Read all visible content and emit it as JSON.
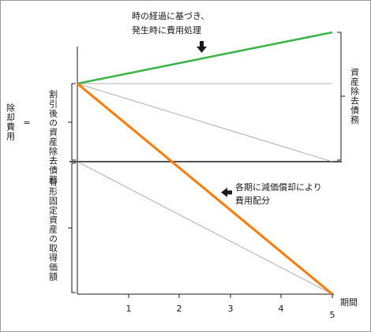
{
  "annotations": {
    "top_note_line1": "時の経過に基づき、",
    "top_note_line2": "発生時に費用処理",
    "right_note_line1": "各期に減価償却により",
    "right_note_line2": "費用配分"
  },
  "labels": {
    "removal_cost": "除却費用",
    "equals": "=",
    "discounted_asset": "割引後の資産除去債務",
    "acquisition_cost": "有形固定資産の取得価額",
    "aro": "資産除去債務",
    "x_axis_title": "期間"
  },
  "x_ticks": [
    "1",
    "2",
    "3",
    "4",
    "5"
  ],
  "colors": {
    "green_line": "#3cb44b",
    "orange_line": "#ff7a00",
    "axis": "#1a1a1a",
    "thin_line": "#9a9a9a"
  }
}
